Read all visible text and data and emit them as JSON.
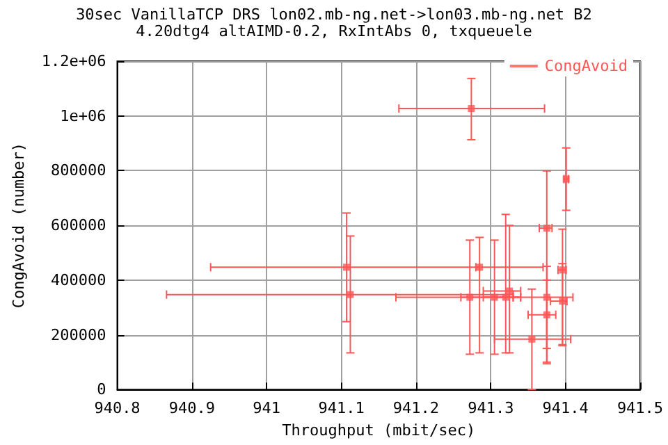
{
  "chart_data": {
    "type": "scatter",
    "title": "30sec VanillaTCP DRS lon02.mb-ng.net->lon03.mb-ng.net B2",
    "subtitle": "4.20dtg4 altAIMD-0.2, RxIntAbs 0, txqueuele",
    "xlabel": "Throughput (mbit/sec)",
    "ylabel": "CongAvoid (number)",
    "x": [
      941.274,
      941.107,
      941.112,
      941.285,
      941.272,
      941.305,
      941.32,
      941.325,
      941.375,
      941.375,
      941.375,
      941.355,
      941.396,
      941.396,
      941.401
    ],
    "series": [
      {
        "name": "CongAvoid",
        "color": "#ff5555",
        "values": [
          1027000,
          447000,
          347000,
          447000,
          337000,
          337000,
          337000,
          360000,
          590000,
          337000,
          273000,
          184000,
          437000,
          323000,
          769000
        ],
        "errors": [
          [
            913000,
            1137000
          ],
          [
            248000,
            645000
          ],
          [
            134000,
            561000
          ],
          [
            134000,
            556000
          ],
          [
            129000,
            546000
          ],
          [
            129000,
            546000
          ],
          [
            134000,
            640000
          ],
          [
            134000,
            600000
          ],
          [
            94000,
            799000
          ],
          [
            100000,
            450000
          ],
          [
            150000,
            400000
          ],
          [
            0,
            367000
          ],
          [
            164000,
            586000
          ],
          [
            160000,
            460000
          ],
          [
            655000,
            883000
          ]
        ],
        "xerrors": [
          [
            941.177,
            941.372
          ],
          [
            940.925,
            941.285
          ],
          [
            940.866,
            941.33
          ],
          [
            941.28,
            941.37
          ],
          [
            941.173,
            941.34
          ],
          [
            941.26,
            941.33
          ],
          [
            941.29,
            941.34
          ],
          [
            941.29,
            941.34
          ],
          [
            941.365,
            941.382
          ],
          [
            941.33,
            941.41
          ],
          [
            941.35,
            941.387
          ],
          [
            941.305,
            941.407
          ],
          [
            941.39,
            941.401
          ],
          [
            941.38,
            941.402
          ],
          [
            941.398,
            941.404
          ]
        ]
      }
    ],
    "xlim": [
      940.8,
      941.5
    ],
    "xticks": [
      940.8,
      940.9,
      941,
      941.1,
      941.2,
      941.3,
      941.4,
      941.5
    ],
    "ylim": [
      0,
      1200000
    ],
    "yticks": [
      0,
      200000,
      400000,
      600000,
      800000,
      {
        "value": 1000000,
        "label": "1e+06"
      },
      {
        "value": 1200000,
        "label": "1.2e+06"
      }
    ],
    "grid": true,
    "legend": "top right",
    "marker": "square"
  }
}
